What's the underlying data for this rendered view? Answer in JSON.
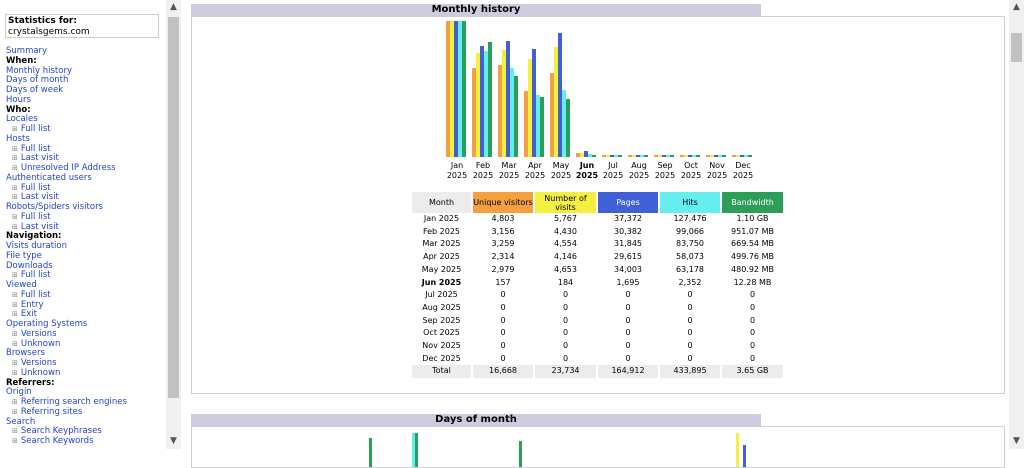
{
  "left": {
    "stats_label": "Statistics for:",
    "site": "crystalsgems.com",
    "menu": [
      {
        "t": "Summary",
        "k": "lnk"
      },
      {
        "t": "When:",
        "k": "hdr"
      },
      {
        "t": "Monthly history",
        "k": "lnk"
      },
      {
        "t": "Days of month",
        "k": "lnk"
      },
      {
        "t": "Days of week",
        "k": "lnk"
      },
      {
        "t": "Hours",
        "k": "lnk"
      },
      {
        "t": "Who:",
        "k": "hdr"
      },
      {
        "t": "Locales",
        "k": "lnk"
      },
      {
        "t": "Full list",
        "k": "sub"
      },
      {
        "t": "Hosts",
        "k": "lnk"
      },
      {
        "t": "Full list",
        "k": "sub"
      },
      {
        "t": "Last visit",
        "k": "sub"
      },
      {
        "t": "Unresolved IP Address",
        "k": "sub"
      },
      {
        "t": "Authenticated users",
        "k": "lnk"
      },
      {
        "t": "Full list",
        "k": "sub"
      },
      {
        "t": "Last visit",
        "k": "sub"
      },
      {
        "t": "Robots/Spiders visitors",
        "k": "lnk"
      },
      {
        "t": "Full list",
        "k": "sub"
      },
      {
        "t": "Last visit",
        "k": "sub"
      },
      {
        "t": "Navigation:",
        "k": "hdr"
      },
      {
        "t": "Visits duration",
        "k": "lnk"
      },
      {
        "t": "File type",
        "k": "lnk"
      },
      {
        "t": "Downloads",
        "k": "lnk"
      },
      {
        "t": "Full list",
        "k": "sub"
      },
      {
        "t": "Viewed",
        "k": "lnk"
      },
      {
        "t": "Full list",
        "k": "sub"
      },
      {
        "t": "Entry",
        "k": "sub"
      },
      {
        "t": "Exit",
        "k": "sub"
      },
      {
        "t": "Operating Systems",
        "k": "lnk"
      },
      {
        "t": "Versions",
        "k": "sub"
      },
      {
        "t": "Unknown",
        "k": "sub"
      },
      {
        "t": "Browsers",
        "k": "lnk"
      },
      {
        "t": "Versions",
        "k": "sub"
      },
      {
        "t": "Unknown",
        "k": "sub"
      },
      {
        "t": "Referrers:",
        "k": "hdr"
      },
      {
        "t": "Origin",
        "k": "lnk"
      },
      {
        "t": "Referring search engines",
        "k": "sub"
      },
      {
        "t": "Referring sites",
        "k": "sub"
      },
      {
        "t": "Search",
        "k": "lnk"
      },
      {
        "t": "Search Keyphrases",
        "k": "sub"
      },
      {
        "t": "Search Keywords",
        "k": "sub"
      }
    ]
  },
  "main": {
    "monthly_title": "Monthly history",
    "days_title": "Days of month",
    "colors": {
      "uv": "#f4a040",
      "nv": "#f4f040",
      "pg": "#4060d8",
      "ht": "#66eeee",
      "bw": "#2c9e57",
      "grey": "#ececec"
    },
    "table": {
      "headers": [
        "Month",
        "Unique visitors",
        "Number of visits",
        "Pages",
        "Hits",
        "Bandwidth"
      ],
      "rows": [
        {
          "month": "Jan 2025",
          "uv": "4,803",
          "nv": "5,767",
          "pg": "37,372",
          "ht": "127,476",
          "bw": "1.10 GB"
        },
        {
          "month": "Feb 2025",
          "uv": "3,156",
          "nv": "4,430",
          "pg": "30,382",
          "ht": "99,066",
          "bw": "951.07 MB"
        },
        {
          "month": "Mar 2025",
          "uv": "3,259",
          "nv": "4,554",
          "pg": "31,845",
          "ht": "83,750",
          "bw": "669.54 MB"
        },
        {
          "month": "Apr 2025",
          "uv": "2,314",
          "nv": "4,146",
          "pg": "29,615",
          "ht": "58,073",
          "bw": "499.76 MB"
        },
        {
          "month": "May 2025",
          "uv": "2,979",
          "nv": "4,653",
          "pg": "34,003",
          "ht": "63,178",
          "bw": "480.92 MB"
        },
        {
          "month": "Jun 2025",
          "uv": "157",
          "nv": "184",
          "pg": "1,695",
          "ht": "2,352",
          "bw": "12.28 MB",
          "current": true
        },
        {
          "month": "Jul 2025",
          "uv": "0",
          "nv": "0",
          "pg": "0",
          "ht": "0",
          "bw": "0"
        },
        {
          "month": "Aug 2025",
          "uv": "0",
          "nv": "0",
          "pg": "0",
          "ht": "0",
          "bw": "0"
        },
        {
          "month": "Sep 2025",
          "uv": "0",
          "nv": "0",
          "pg": "0",
          "ht": "0",
          "bw": "0"
        },
        {
          "month": "Oct 2025",
          "uv": "0",
          "nv": "0",
          "pg": "0",
          "ht": "0",
          "bw": "0"
        },
        {
          "month": "Nov 2025",
          "uv": "0",
          "nv": "0",
          "pg": "0",
          "ht": "0",
          "bw": "0"
        },
        {
          "month": "Dec 2025",
          "uv": "0",
          "nv": "0",
          "pg": "0",
          "ht": "0",
          "bw": "0"
        }
      ],
      "total": {
        "month": "Total",
        "uv": "16,668",
        "nv": "23,734",
        "pg": "164,912",
        "ht": "433,895",
        "bw": "3.65 GB"
      }
    }
  },
  "chart_data": {
    "type": "bar",
    "title": "Monthly history",
    "categories": [
      "Jan 2025",
      "Feb 2025",
      "Mar 2025",
      "Apr 2025",
      "May 2025",
      "Jun 2025",
      "Jul 2025",
      "Aug 2025",
      "Sep 2025",
      "Oct 2025",
      "Nov 2025",
      "Dec 2025"
    ],
    "month_labels": [
      "Jan",
      "Feb",
      "Mar",
      "Apr",
      "May",
      "Jun",
      "Jul",
      "Aug",
      "Sep",
      "Oct",
      "Nov",
      "Dec"
    ],
    "year_label": "2025",
    "series": [
      {
        "name": "Unique visitors",
        "values": [
          4803,
          3156,
          3259,
          2314,
          2979,
          157,
          0,
          0,
          0,
          0,
          0,
          0
        ]
      },
      {
        "name": "Number of visits",
        "values": [
          5767,
          4430,
          4554,
          4146,
          4653,
          184,
          0,
          0,
          0,
          0,
          0,
          0
        ]
      },
      {
        "name": "Pages",
        "values": [
          37372,
          30382,
          31845,
          29615,
          34003,
          1695,
          0,
          0,
          0,
          0,
          0,
          0
        ]
      },
      {
        "name": "Hits",
        "values": [
          127476,
          99066,
          83750,
          58073,
          63178,
          2352,
          0,
          0,
          0,
          0,
          0,
          0
        ]
      },
      {
        "name": "Bandwidth (MB)",
        "values": [
          1126,
          951.07,
          669.54,
          499.76,
          480.92,
          12.28,
          0,
          0,
          0,
          0,
          0,
          0
        ]
      }
    ]
  }
}
